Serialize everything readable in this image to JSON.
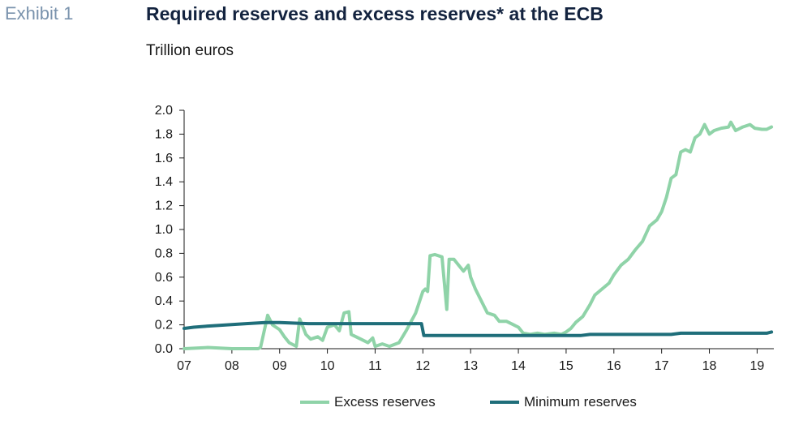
{
  "exhibit_label": "Exhibit 1",
  "title": "Required reserves and excess reserves* at the ECB",
  "subtitle": "Trillion euros",
  "colors": {
    "excess": "#8fd3a8",
    "minimum": "#1f6e7a",
    "axis": "#1a1a1a"
  },
  "chart_data": {
    "type": "line",
    "title": "Required reserves and excess reserves* at the ECB",
    "ylabel": "Trillion euros",
    "xlabel": "",
    "ylim": [
      0,
      2.0
    ],
    "xlim": [
      2007,
      2019.35
    ],
    "yticks": [
      "0.0",
      "0.2",
      "0.4",
      "0.6",
      "0.8",
      "1.0",
      "1.2",
      "1.4",
      "1.6",
      "1.8",
      "2.0"
    ],
    "xticks": [
      "07",
      "08",
      "09",
      "10",
      "11",
      "12",
      "13",
      "14",
      "15",
      "16",
      "17",
      "18",
      "19"
    ],
    "legend_position": "bottom",
    "series": [
      {
        "name": "Excess reserves",
        "color": "#8fd3a8",
        "points": [
          [
            2007.0,
            0.0
          ],
          [
            2007.5,
            0.01
          ],
          [
            2008.0,
            0.0
          ],
          [
            2008.55,
            0.0
          ],
          [
            2008.6,
            0.01
          ],
          [
            2008.75,
            0.28
          ],
          [
            2008.85,
            0.2
          ],
          [
            2009.0,
            0.16
          ],
          [
            2009.1,
            0.1
          ],
          [
            2009.2,
            0.05
          ],
          [
            2009.35,
            0.02
          ],
          [
            2009.42,
            0.25
          ],
          [
            2009.55,
            0.12
          ],
          [
            2009.65,
            0.08
          ],
          [
            2009.8,
            0.1
          ],
          [
            2009.9,
            0.07
          ],
          [
            2010.0,
            0.18
          ],
          [
            2010.15,
            0.2
          ],
          [
            2010.25,
            0.15
          ],
          [
            2010.35,
            0.3
          ],
          [
            2010.45,
            0.31
          ],
          [
            2010.5,
            0.12
          ],
          [
            2010.7,
            0.08
          ],
          [
            2010.85,
            0.05
          ],
          [
            2010.95,
            0.09
          ],
          [
            2011.0,
            0.02
          ],
          [
            2011.15,
            0.04
          ],
          [
            2011.3,
            0.02
          ],
          [
            2011.5,
            0.05
          ],
          [
            2011.65,
            0.15
          ],
          [
            2011.85,
            0.3
          ],
          [
            2012.0,
            0.48
          ],
          [
            2012.05,
            0.5
          ],
          [
            2012.1,
            0.48
          ],
          [
            2012.15,
            0.78
          ],
          [
            2012.25,
            0.79
          ],
          [
            2012.4,
            0.77
          ],
          [
            2012.5,
            0.33
          ],
          [
            2012.55,
            0.75
          ],
          [
            2012.65,
            0.75
          ],
          [
            2012.75,
            0.7
          ],
          [
            2012.85,
            0.65
          ],
          [
            2012.95,
            0.7
          ],
          [
            2013.0,
            0.6
          ],
          [
            2013.1,
            0.5
          ],
          [
            2013.25,
            0.38
          ],
          [
            2013.35,
            0.3
          ],
          [
            2013.5,
            0.28
          ],
          [
            2013.6,
            0.23
          ],
          [
            2013.75,
            0.23
          ],
          [
            2013.9,
            0.2
          ],
          [
            2014.0,
            0.18
          ],
          [
            2014.1,
            0.13
          ],
          [
            2014.25,
            0.12
          ],
          [
            2014.4,
            0.13
          ],
          [
            2014.55,
            0.12
          ],
          [
            2014.75,
            0.13
          ],
          [
            2014.9,
            0.12
          ],
          [
            2015.0,
            0.14
          ],
          [
            2015.1,
            0.17
          ],
          [
            2015.2,
            0.22
          ],
          [
            2015.35,
            0.27
          ],
          [
            2015.5,
            0.37
          ],
          [
            2015.6,
            0.45
          ],
          [
            2015.75,
            0.5
          ],
          [
            2015.9,
            0.55
          ],
          [
            2016.0,
            0.62
          ],
          [
            2016.15,
            0.7
          ],
          [
            2016.3,
            0.75
          ],
          [
            2016.45,
            0.83
          ],
          [
            2016.6,
            0.9
          ],
          [
            2016.75,
            1.03
          ],
          [
            2016.9,
            1.08
          ],
          [
            2017.0,
            1.15
          ],
          [
            2017.1,
            1.27
          ],
          [
            2017.2,
            1.43
          ],
          [
            2017.3,
            1.46
          ],
          [
            2017.4,
            1.65
          ],
          [
            2017.5,
            1.67
          ],
          [
            2017.6,
            1.65
          ],
          [
            2017.7,
            1.77
          ],
          [
            2017.8,
            1.8
          ],
          [
            2017.9,
            1.88
          ],
          [
            2018.0,
            1.8
          ],
          [
            2018.1,
            1.83
          ],
          [
            2018.25,
            1.85
          ],
          [
            2018.4,
            1.86
          ],
          [
            2018.45,
            1.9
          ],
          [
            2018.55,
            1.83
          ],
          [
            2018.7,
            1.86
          ],
          [
            2018.85,
            1.88
          ],
          [
            2018.95,
            1.85
          ],
          [
            2019.1,
            1.84
          ],
          [
            2019.2,
            1.84
          ],
          [
            2019.3,
            1.86
          ]
        ]
      },
      {
        "name": "Minimum reserves",
        "color": "#1f6e7a",
        "points": [
          [
            2007.0,
            0.17
          ],
          [
            2007.2,
            0.18
          ],
          [
            2007.5,
            0.19
          ],
          [
            2007.9,
            0.2
          ],
          [
            2008.3,
            0.21
          ],
          [
            2008.7,
            0.22
          ],
          [
            2009.0,
            0.22
          ],
          [
            2009.6,
            0.21
          ],
          [
            2010.0,
            0.21
          ],
          [
            2010.6,
            0.21
          ],
          [
            2011.0,
            0.21
          ],
          [
            2011.5,
            0.21
          ],
          [
            2011.97,
            0.21
          ],
          [
            2012.02,
            0.11
          ],
          [
            2012.5,
            0.11
          ],
          [
            2013.0,
            0.11
          ],
          [
            2014.0,
            0.11
          ],
          [
            2015.0,
            0.11
          ],
          [
            2015.3,
            0.11
          ],
          [
            2015.5,
            0.12
          ],
          [
            2016.0,
            0.12
          ],
          [
            2017.0,
            0.12
          ],
          [
            2017.2,
            0.12
          ],
          [
            2017.4,
            0.13
          ],
          [
            2018.0,
            0.13
          ],
          [
            2019.0,
            0.13
          ],
          [
            2019.2,
            0.13
          ],
          [
            2019.3,
            0.14
          ]
        ]
      }
    ]
  }
}
